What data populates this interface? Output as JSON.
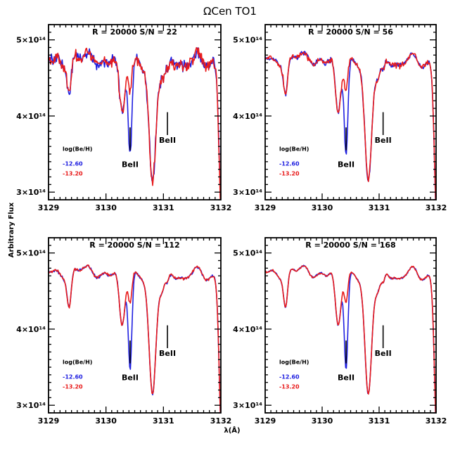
{
  "figure": {
    "title": "ΩCen TO1",
    "xlabel": "λ(Å)",
    "ylabel": "Arbitrary Flux"
  },
  "chart_data": [
    {
      "type": "line",
      "label": "R = 20000 S/N = 22",
      "xlim": [
        3129,
        3132
      ],
      "ylim": [
        290000000000000.0,
        520000000000000.0
      ],
      "xticks": [
        3129,
        3130,
        3131,
        3132
      ],
      "xtick_labels": [
        "3129",
        "3130",
        "3131",
        "3132"
      ],
      "yticks": [
        300000000000000.0,
        400000000000000.0,
        500000000000000.0
      ],
      "ytick_labels": [
        "3×10¹⁴",
        "4×10¹⁴",
        "5×10¹⁴"
      ],
      "legend_title": "log(Be/H)",
      "line_markers": [
        {
          "x": 3130.42,
          "y_bottom": 355000000000000.0,
          "y_top": 385000000000000.0,
          "label": "BeII"
        },
        {
          "x": 3131.07,
          "y_bottom": 375000000000000.0,
          "y_top": 405000000000000.0,
          "label": "BeII"
        }
      ],
      "noise": 0.08,
      "series": [
        {
          "name": "-12.60",
          "color": "#1f1fe0",
          "be_depth": 0.26
        },
        {
          "name": "-13.20",
          "color": "#e81b1b",
          "be_depth": 0.08
        }
      ]
    },
    {
      "type": "line",
      "label": "R = 20000 S/N = 56",
      "xlim": [
        3129,
        3132
      ],
      "ylim": [
        290000000000000.0,
        520000000000000.0
      ],
      "xticks": [
        3129,
        3130,
        3131,
        3132
      ],
      "xtick_labels": [
        "3129",
        "3130",
        "3131",
        "3132"
      ],
      "yticks": [
        300000000000000.0,
        400000000000000.0,
        500000000000000.0
      ],
      "ytick_labels": [
        "3×10¹⁴",
        "4×10¹⁴",
        "5×10¹⁴"
      ],
      "legend_title": "log(Be/H)",
      "line_markers": [
        {
          "x": 3130.42,
          "y_bottom": 355000000000000.0,
          "y_top": 385000000000000.0,
          "label": "BeII"
        },
        {
          "x": 3131.07,
          "y_bottom": 375000000000000.0,
          "y_top": 405000000000000.0,
          "label": "BeII"
        }
      ],
      "noise": 0.035,
      "series": [
        {
          "name": "-12.60",
          "color": "#1f1fe0",
          "be_depth": 0.26
        },
        {
          "name": "-13.20",
          "color": "#e81b1b",
          "be_depth": 0.08
        }
      ]
    },
    {
      "type": "line",
      "label": "R = 20000 S/N = 112",
      "xlim": [
        3129,
        3132
      ],
      "ylim": [
        290000000000000.0,
        520000000000000.0
      ],
      "xticks": [
        3129,
        3130,
        3131,
        3132
      ],
      "xtick_labels": [
        "3129",
        "3130",
        "3131",
        "3132"
      ],
      "yticks": [
        300000000000000.0,
        400000000000000.0,
        500000000000000.0
      ],
      "ytick_labels": [
        "3×10¹⁴",
        "4×10¹⁴",
        "5×10¹⁴"
      ],
      "legend_title": "log(Be/H)",
      "line_markers": [
        {
          "x": 3130.42,
          "y_bottom": 355000000000000.0,
          "y_top": 385000000000000.0,
          "label": "BeII"
        },
        {
          "x": 3131.07,
          "y_bottom": 375000000000000.0,
          "y_top": 405000000000000.0,
          "label": "BeII"
        }
      ],
      "noise": 0.018,
      "series": [
        {
          "name": "-12.60",
          "color": "#1f1fe0",
          "be_depth": 0.26
        },
        {
          "name": "-13.20",
          "color": "#e81b1b",
          "be_depth": 0.08
        }
      ]
    },
    {
      "type": "line",
      "label": "R = 20000 S/N = 168",
      "xlim": [
        3129,
        3132
      ],
      "ylim": [
        290000000000000.0,
        520000000000000.0
      ],
      "xticks": [
        3129,
        3130,
        3131,
        3132
      ],
      "xtick_labels": [
        "3129",
        "3130",
        "3131",
        "3132"
      ],
      "yticks": [
        300000000000000.0,
        400000000000000.0,
        500000000000000.0
      ],
      "ytick_labels": [
        "3×10¹⁴",
        "4×10¹⁴",
        "5×10¹⁴"
      ],
      "legend_title": "log(Be/H)",
      "line_markers": [
        {
          "x": 3130.42,
          "y_bottom": 355000000000000.0,
          "y_top": 385000000000000.0,
          "label": "BeII"
        },
        {
          "x": 3131.07,
          "y_bottom": 375000000000000.0,
          "y_top": 405000000000000.0,
          "label": "BeII"
        }
      ],
      "noise": 0.012,
      "series": [
        {
          "name": "-12.60",
          "color": "#1f1fe0",
          "be_depth": 0.26
        },
        {
          "name": "-13.20",
          "color": "#e81b1b",
          "be_depth": 0.08
        }
      ]
    }
  ]
}
